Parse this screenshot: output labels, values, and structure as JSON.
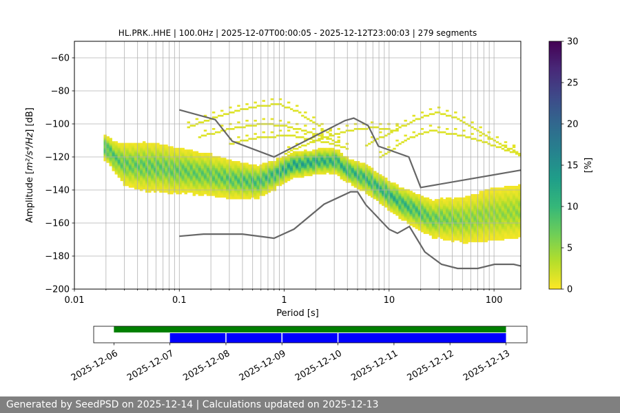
{
  "chart_data": {
    "type": "heatmap",
    "title": "HL.PRK..HHE | 100.0Hz | 2025-12-07T00:00:05 - 2025-12-12T23:00:03 | 279 segments",
    "xlabel": "Period [s]",
    "ylabel_prefix": "Amplitude [",
    "ylabel_math": "m²/s⁴/Hz",
    "ylabel_suffix": "] [dB]",
    "x_scale": "log",
    "xlim": [
      0.01,
      180
    ],
    "ylim": [
      -200,
      -50
    ],
    "x_ticks": [
      {
        "value": 0.01,
        "label": "0.01"
      },
      {
        "value": 0.1,
        "label": "0.1"
      },
      {
        "value": 1,
        "label": "1"
      },
      {
        "value": 10,
        "label": "10"
      },
      {
        "value": 100,
        "label": "100"
      }
    ],
    "y_ticks": [
      {
        "value": -60,
        "label": "−60"
      },
      {
        "value": -80,
        "label": "−80"
      },
      {
        "value": -100,
        "label": "−100"
      },
      {
        "value": -120,
        "label": "−120"
      },
      {
        "value": -140,
        "label": "−140"
      },
      {
        "value": -160,
        "label": "−160"
      },
      {
        "value": -180,
        "label": "−180"
      },
      {
        "value": -200,
        "label": "−200"
      }
    ],
    "grid": "x-major-and-minor, y-major",
    "colorbar": {
      "label": "[%]",
      "range": [
        0,
        30
      ],
      "ticks": [
        {
          "value": 0,
          "label": "0"
        },
        {
          "value": 5,
          "label": "5"
        },
        {
          "value": 10,
          "label": "10"
        },
        {
          "value": 15,
          "label": "15"
        },
        {
          "value": 20,
          "label": "20"
        },
        {
          "value": 25,
          "label": "25"
        },
        {
          "value": 30,
          "label": "30"
        }
      ],
      "colormap": [
        "#fde725",
        "#b5de2b",
        "#6ece58",
        "#35b779",
        "#1f9e89",
        "#26828e",
        "#31688e",
        "#3e4989",
        "#482878",
        "#440154"
      ]
    },
    "psd_main_band": [
      {
        "period": 0.019,
        "center": -113,
        "halfwidth": 6,
        "peak": 12
      },
      {
        "period": 0.025,
        "center": -121,
        "halfwidth": 8,
        "peak": 10
      },
      {
        "period": 0.03,
        "center": -124,
        "halfwidth": 10,
        "peak": 9
      },
      {
        "period": 0.05,
        "center": -126,
        "halfwidth": 12,
        "peak": 9
      },
      {
        "period": 0.1,
        "center": -128,
        "halfwidth": 11,
        "peak": 9
      },
      {
        "period": 0.2,
        "center": -131,
        "halfwidth": 10,
        "peak": 9
      },
      {
        "period": 0.35,
        "center": -134,
        "halfwidth": 9,
        "peak": 10
      },
      {
        "period": 0.55,
        "center": -135,
        "halfwidth": 8,
        "peak": 11
      },
      {
        "period": 0.8,
        "center": -131,
        "halfwidth": 7,
        "peak": 12
      },
      {
        "period": 1.2,
        "center": -125,
        "halfwidth": 6,
        "peak": 15
      },
      {
        "period": 2,
        "center": -123,
        "halfwidth": 6,
        "peak": 14
      },
      {
        "period": 3,
        "center": -122,
        "halfwidth": 6,
        "peak": 13
      },
      {
        "period": 4.5,
        "center": -130,
        "halfwidth": 6,
        "peak": 13
      },
      {
        "period": 6,
        "center": -133,
        "halfwidth": 7,
        "peak": 12
      },
      {
        "period": 10,
        "center": -143,
        "halfwidth": 7,
        "peak": 13
      },
      {
        "period": 15,
        "center": -150,
        "halfwidth": 8,
        "peak": 12
      },
      {
        "period": 25,
        "center": -157,
        "halfwidth": 9,
        "peak": 9
      },
      {
        "period": 50,
        "center": -158,
        "halfwidth": 11,
        "peak": 7
      },
      {
        "period": 100,
        "center": -155,
        "halfwidth": 13,
        "peak": 6
      },
      {
        "period": 180,
        "center": -153,
        "halfwidth": 13,
        "peak": 6
      }
    ],
    "psd_sparse_arcs": [
      {
        "points": [
          [
            0.12,
            -102
          ],
          [
            0.2,
            -97
          ],
          [
            0.35,
            -92
          ],
          [
            0.6,
            -89
          ],
          [
            0.9,
            -88
          ],
          [
            1.3,
            -92
          ],
          [
            2,
            -100
          ],
          [
            3,
            -108
          ]
        ]
      },
      {
        "points": [
          [
            0.15,
            -108
          ],
          [
            0.3,
            -103
          ],
          [
            0.6,
            -100
          ],
          [
            1,
            -101
          ],
          [
            2,
            -106
          ],
          [
            3.5,
            -112
          ]
        ]
      },
      {
        "points": [
          [
            1,
            -118
          ],
          [
            2,
            -110
          ],
          [
            4,
            -104
          ],
          [
            7,
            -102
          ],
          [
            12,
            -104
          ]
        ]
      },
      {
        "points": [
          [
            6,
            -113
          ],
          [
            12,
            -103
          ],
          [
            22,
            -95
          ],
          [
            30,
            -93
          ],
          [
            50,
            -98
          ],
          [
            80,
            -106
          ],
          [
            130,
            -114
          ],
          [
            180,
            -118
          ]
        ]
      },
      {
        "points": [
          [
            8,
            -121
          ],
          [
            15,
            -109
          ],
          [
            25,
            -104
          ],
          [
            50,
            -107
          ],
          [
            100,
            -113
          ],
          [
            180,
            -119
          ]
        ]
      },
      {
        "points": [
          [
            0.3,
            -112
          ],
          [
            0.6,
            -108
          ],
          [
            1.2,
            -107
          ],
          [
            2.5,
            -111
          ],
          [
            4,
            -115
          ]
        ]
      }
    ],
    "nhnm": [
      {
        "period": 0.1,
        "db": -91.5
      },
      {
        "period": 0.22,
        "db": -97.4
      },
      {
        "period": 0.32,
        "db": -110.5
      },
      {
        "period": 0.8,
        "db": -120
      },
      {
        "period": 3.8,
        "db": -98
      },
      {
        "period": 4.6,
        "db": -96.5
      },
      {
        "period": 6.3,
        "db": -101
      },
      {
        "period": 7.9,
        "db": -113.5
      },
      {
        "period": 15.4,
        "db": -120
      },
      {
        "period": 20,
        "db": -138.5
      },
      {
        "period": 180,
        "db": -128
      }
    ],
    "nlnm": [
      {
        "period": 0.1,
        "db": -168
      },
      {
        "period": 0.17,
        "db": -166.7
      },
      {
        "period": 0.4,
        "db": -166.7
      },
      {
        "period": 0.8,
        "db": -169.2
      },
      {
        "period": 1.24,
        "db": -163.7
      },
      {
        "period": 2.4,
        "db": -148.6
      },
      {
        "period": 4.3,
        "db": -141.1
      },
      {
        "period": 5,
        "db": -141.1
      },
      {
        "period": 6,
        "db": -149
      },
      {
        "period": 10,
        "db": -163.8
      },
      {
        "period": 12,
        "db": -166.2
      },
      {
        "period": 15.6,
        "db": -162.1
      },
      {
        "period": 21.9,
        "db": -177.5
      },
      {
        "period": 31.6,
        "db": -185
      },
      {
        "period": 45,
        "db": -187.5
      },
      {
        "period": 70,
        "db": -187.5
      },
      {
        "period": 101,
        "db": -185
      },
      {
        "period": 154,
        "db": -185
      },
      {
        "period": 180,
        "db": -186
      }
    ],
    "timeline": {
      "xlim": [
        "2025-12-05T15:20",
        "2025-12-13T09:00"
      ],
      "ticks": [
        "2025-12-06",
        "2025-12-07",
        "2025-12-08",
        "2025-12-09",
        "2025-12-10",
        "2025-12-11",
        "2025-12-12",
        "2025-12-13"
      ],
      "coverage_bar": {
        "color": "#008000",
        "start": "2025-12-06T00:00",
        "end": "2025-12-13T00:00"
      },
      "segments_bar": {
        "color": "#0000ff",
        "start": "2025-12-07T00:00",
        "end": "2025-12-13T00:00",
        "gaps": [
          "2025-12-08T00:00",
          "2025-12-09T00:00",
          "2025-12-10T00:00"
        ]
      }
    }
  },
  "footer": {
    "text": "Generated by SeedPSD on 2025-12-14 | Calculations updated on 2025-12-13"
  }
}
